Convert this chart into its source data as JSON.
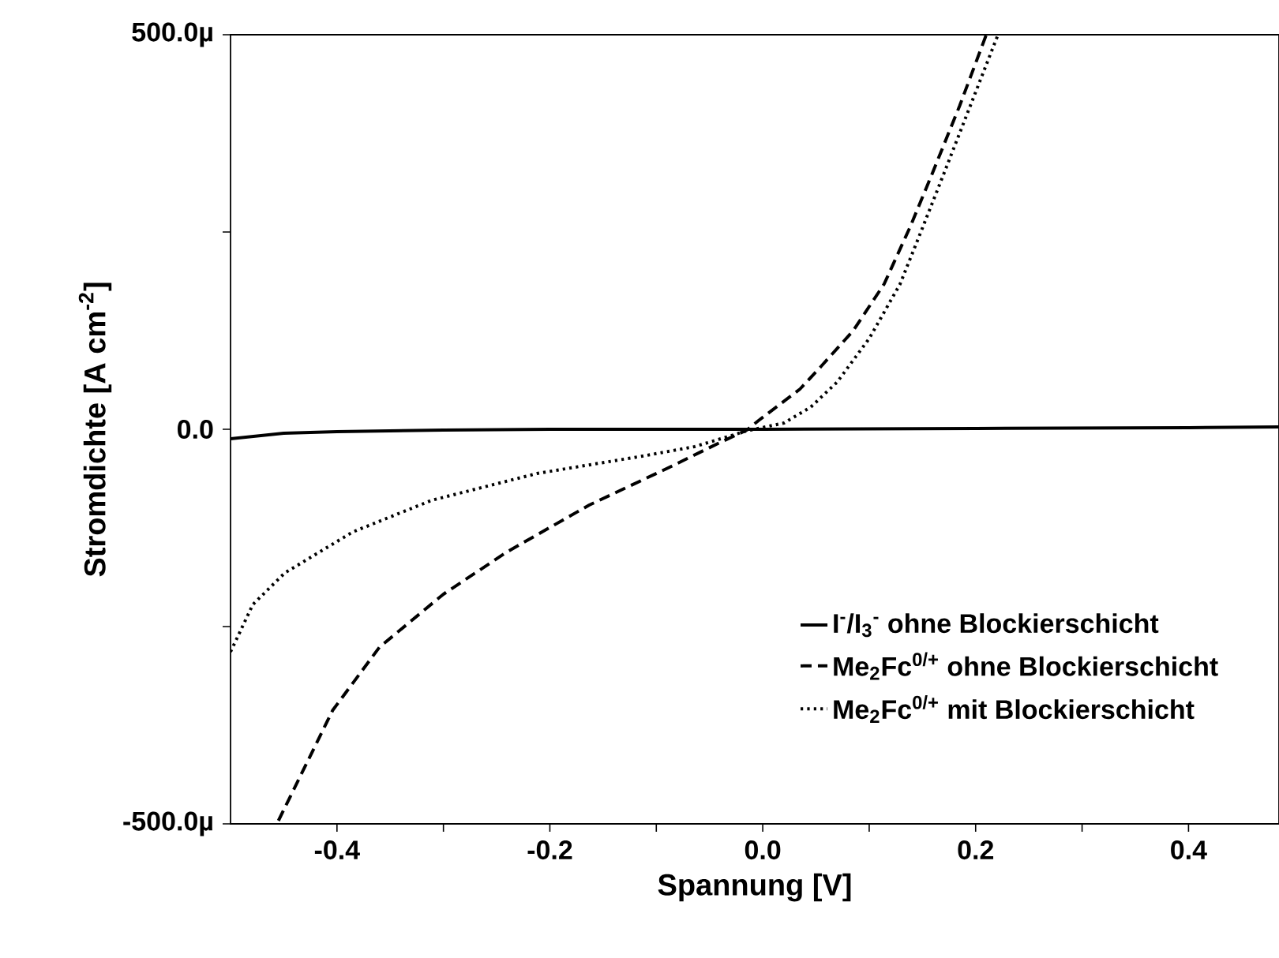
{
  "chart_data": {
    "type": "line",
    "xlabel": "Spannung [V]",
    "ylabel": "Stromdichte [A cm$^{-2}$]",
    "xlim": [
      -0.5,
      0.485
    ],
    "ylim": [
      -500,
      500
    ],
    "xticks": [
      -0.4,
      {
        "value": -0.3,
        "label": null
      },
      -0.2,
      {
        "value": -0.1,
        "label": null
      },
      {
        "value": 0,
        "label": "0.0"
      },
      {
        "value": 0.1,
        "label": null
      },
      0.2,
      {
        "value": 0.3,
        "label": null
      },
      0.4
    ],
    "yticks": [
      {
        "value": -500,
        "label": "-500.0µ"
      },
      {
        "value": -250,
        "label": null
      },
      {
        "value": 0,
        "label": "0.0"
      },
      {
        "value": 250,
        "label": null
      },
      {
        "value": 500,
        "label": "500.0µ"
      }
    ],
    "legend": "bottom right",
    "marker": "none",
    "grid": false,
    "series": [
      {
        "name": "I$^{-}$/I$_{3}$$^{-}$ ohne Blockierschicht",
        "color": "#000000",
        "line_style": "solid",
        "x": [
          -0.5,
          -0.45,
          -0.4,
          -0.3,
          -0.2,
          0.0,
          0.2,
          0.4,
          0.485
        ],
        "values": [
          -12,
          -5,
          -3,
          -1,
          0,
          0,
          1,
          2,
          3
        ]
      },
      {
        "name": "Me$_{2}$Fc$^{0/+}$ ohne Blockierschicht",
        "color": "#000000",
        "line_style": "dashed",
        "x": [
          -0.455,
          -0.404,
          -0.36,
          -0.3,
          -0.241,
          -0.163,
          -0.089,
          -0.039,
          -0.015,
          -0.004,
          0.035,
          0.055,
          0.085,
          0.114,
          0.138,
          0.158,
          0.185,
          0.21
        ],
        "values": [
          -496,
          -356,
          -276,
          -209,
          -156,
          -96,
          -49,
          -16,
          -1,
          11,
          51,
          80,
          125,
          184,
          255,
          320,
          410,
          500
        ]
      },
      {
        "name": "Me$_{2}$Fc$^{0/+}$ mit Blockierschicht",
        "color": "#000000",
        "line_style": "dotted",
        "x": [
          -0.5,
          -0.479,
          -0.449,
          -0.385,
          -0.311,
          -0.212,
          -0.113,
          -0.064,
          -0.015,
          0.02,
          0.045,
          0.07,
          0.1,
          0.129,
          0.15,
          0.169,
          0.195,
          0.221
        ],
        "values": [
          -282,
          -222,
          -182,
          -130,
          -90,
          -56,
          -34,
          -22,
          -2,
          8,
          28,
          60,
          115,
          184,
          255,
          320,
          410,
          500
        ]
      }
    ]
  }
}
